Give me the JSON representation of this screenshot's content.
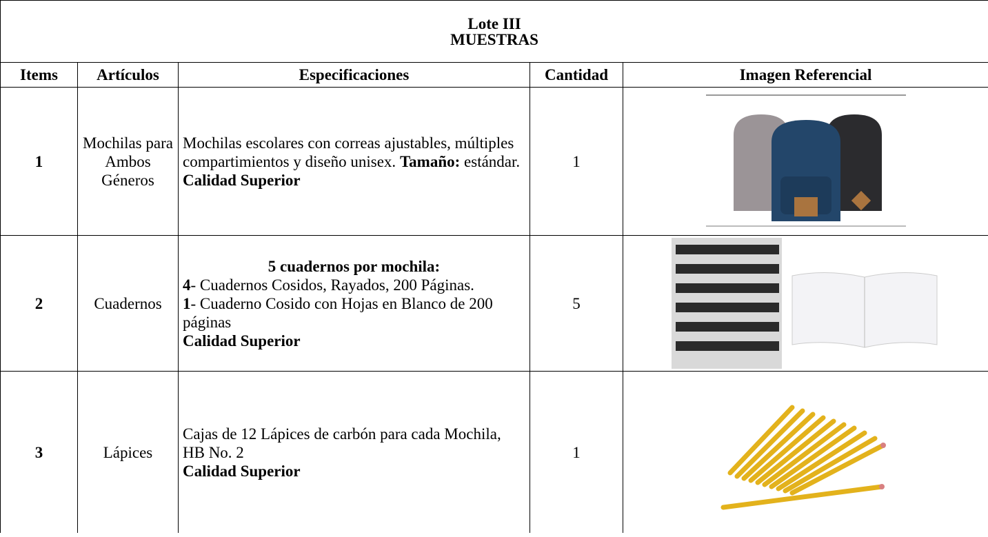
{
  "header": {
    "title": [
      "Lote III",
      "MUESTRAS"
    ]
  },
  "table": {
    "columns": [
      "Items",
      "Artículos",
      "Especificaciones",
      "Cantidad",
      "Imagen Referencial"
    ],
    "rows": [
      {
        "item": "1",
        "article": "Mochilas para Ambos Géneros",
        "quantity": "1",
        "spec": [
          {
            "runs": [
              {
                "text": "Mochilas escolares con correas ajustables, múltiples compartimientos y diseño unisex. ",
                "bold": false
              },
              {
                "text": "Tamaño:",
                "bold": true
              },
              {
                "text": " estándar.",
                "bold": false
              }
            ]
          },
          {
            "runs": [
              {
                "text": "Calidad Superior",
                "bold": true
              }
            ]
          }
        ]
      },
      {
        "item": "2",
        "article": "Cuadernos",
        "quantity": "5",
        "spec": [
          {
            "align": "center",
            "runs": [
              {
                "text": "5 cuadernos por mochila:",
                "bold": true
              }
            ]
          },
          {
            "runs": [
              {
                "text": "4",
                "bold": true
              },
              {
                "text": "- Cuadernos Cosidos, Rayados, 200 Páginas.",
                "bold": false
              }
            ]
          },
          {
            "runs": [
              {
                "text": "1",
                "bold": true
              },
              {
                "text": "- Cuaderno Cosido con Hojas en Blanco de 200 páginas",
                "bold": false
              }
            ]
          },
          {
            "runs": [
              {
                "text": "Calidad Superior",
                "bold": true
              }
            ]
          }
        ]
      },
      {
        "item": "3",
        "article": "Lápices",
        "quantity": "1",
        "spec": [
          {
            "runs": [
              {
                "text": "Cajas de 12 Lápices de carbón para cada Mochila, HB No. 2",
                "bold": false
              }
            ]
          },
          {
            "runs": [
              {
                "text": "Calidad Superior",
                "bold": true
              }
            ]
          }
        ]
      }
    ]
  }
}
